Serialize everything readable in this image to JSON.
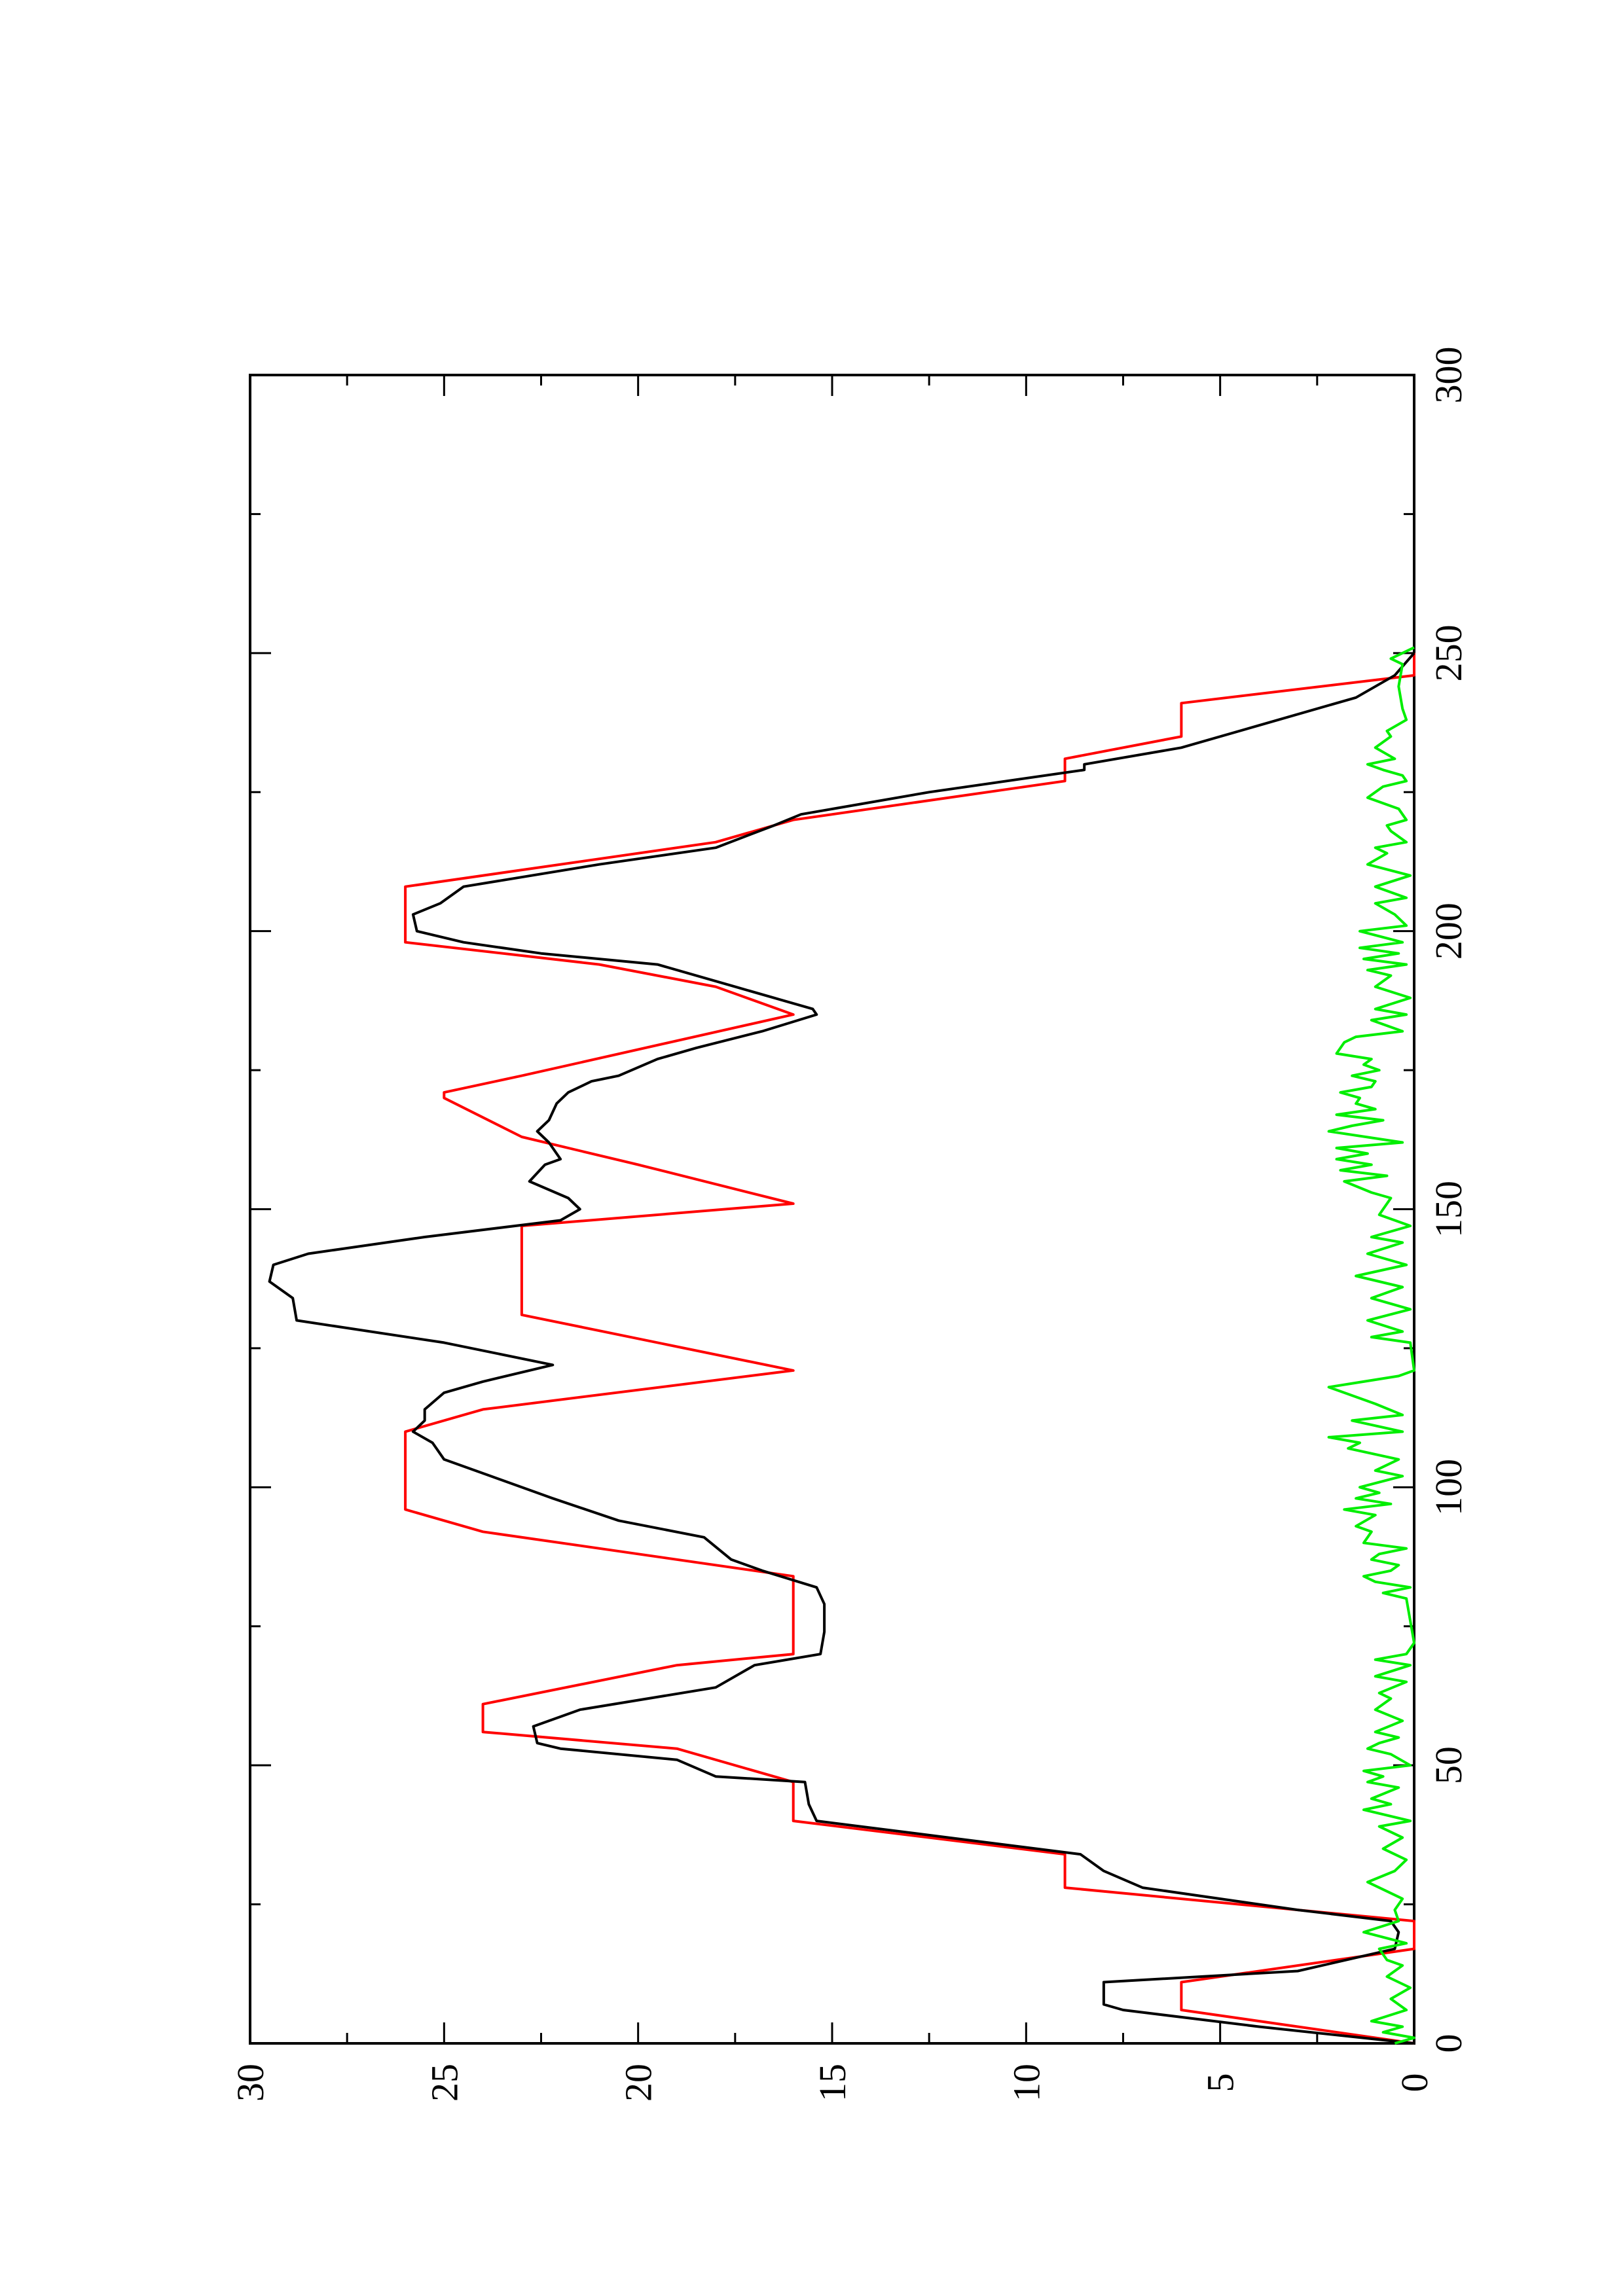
{
  "chart_data": {
    "type": "line",
    "title": "",
    "xlabel": "",
    "ylabel": "",
    "orientation": "rotated 90 degrees counter-clockwise (landscape plot printed on portrait page)",
    "xlim": [
      0,
      300
    ],
    "ylim": [
      0,
      30
    ],
    "x_ticks": [
      0,
      50,
      100,
      150,
      200,
      250,
      300
    ],
    "y_ticks": [
      0,
      5,
      10,
      15,
      20,
      25,
      30
    ],
    "x_tick_labels": [
      "0",
      "50",
      "100",
      "150",
      "200",
      "250",
      "300"
    ],
    "y_tick_labels": [
      "0",
      "5",
      "10",
      "15",
      "20",
      "25",
      "30"
    ],
    "grid": false,
    "legend": "none",
    "series": [
      {
        "color": "#ff0000",
        "points": [
          [
            0,
            0
          ],
          [
            6,
            6
          ],
          [
            11,
            6
          ],
          [
            17,
            0
          ],
          [
            22,
            0
          ],
          [
            28,
            9
          ],
          [
            34,
            9
          ],
          [
            40,
            16
          ],
          [
            47,
            16
          ],
          [
            53,
            19
          ],
          [
            56,
            24
          ],
          [
            61,
            24
          ],
          [
            68,
            19
          ],
          [
            70,
            16
          ],
          [
            84,
            16
          ],
          [
            88,
            20
          ],
          [
            92,
            24
          ],
          [
            96,
            26
          ],
          [
            110,
            26
          ],
          [
            114,
            24
          ],
          [
            121,
            16
          ],
          [
            131,
            23
          ],
          [
            147,
            23
          ],
          [
            151,
            16
          ],
          [
            158,
            20
          ],
          [
            163,
            23
          ],
          [
            170,
            25
          ],
          [
            171,
            25
          ],
          [
            174,
            23
          ],
          [
            185,
            16
          ],
          [
            190,
            18
          ],
          [
            194,
            21
          ],
          [
            198,
            26
          ],
          [
            208,
            26
          ],
          [
            216,
            18
          ],
          [
            220,
            16
          ],
          [
            227,
            9
          ],
          [
            231,
            9
          ],
          [
            235,
            6
          ],
          [
            241,
            6
          ],
          [
            246,
            0
          ],
          [
            250,
            0
          ]
        ]
      },
      {
        "color": "#000000",
        "points": [
          [
            0,
            0
          ],
          [
            3,
            4
          ],
          [
            6,
            7.5
          ],
          [
            7,
            8
          ],
          [
            11,
            8
          ],
          [
            13,
            3
          ],
          [
            17,
            0.5
          ],
          [
            20,
            0.4
          ],
          [
            22,
            0.6
          ],
          [
            24,
            3
          ],
          [
            28,
            7
          ],
          [
            31,
            8
          ],
          [
            34,
            8.6
          ],
          [
            37,
            12
          ],
          [
            40,
            15.4
          ],
          [
            43,
            15.6
          ],
          [
            47,
            15.7
          ],
          [
            48,
            18
          ],
          [
            51,
            19
          ],
          [
            53,
            22
          ],
          [
            54,
            22.6
          ],
          [
            57,
            22.7
          ],
          [
            60,
            21.5
          ],
          [
            64,
            18
          ],
          [
            68,
            17
          ],
          [
            70,
            15.3
          ],
          [
            74,
            15.2
          ],
          [
            79,
            15.2
          ],
          [
            82,
            15.4
          ],
          [
            85,
            16.8
          ],
          [
            87,
            17.6
          ],
          [
            91,
            18.3
          ],
          [
            94,
            20.5
          ],
          [
            98,
            22.2
          ],
          [
            102,
            23.8
          ],
          [
            105,
            25
          ],
          [
            108,
            25.3
          ],
          [
            110,
            25.8
          ],
          [
            112,
            25.5
          ],
          [
            114,
            25.5
          ],
          [
            117,
            25
          ],
          [
            119,
            24
          ],
          [
            122,
            22.2
          ],
          [
            126,
            25
          ],
          [
            130,
            28.8
          ],
          [
            134,
            28.9
          ],
          [
            137,
            29.5
          ],
          [
            140,
            29.4
          ],
          [
            142,
            28.5
          ],
          [
            145,
            25.5
          ],
          [
            148,
            22
          ],
          [
            150,
            21.5
          ],
          [
            152,
            21.8
          ],
          [
            155,
            22.8
          ],
          [
            158,
            22.4
          ],
          [
            159,
            22
          ],
          [
            162,
            22.3
          ],
          [
            164,
            22.6
          ],
          [
            166,
            22.3
          ],
          [
            169,
            22.1
          ],
          [
            171,
            21.8
          ],
          [
            173,
            21.2
          ],
          [
            174,
            20.5
          ],
          [
            177,
            19.5
          ],
          [
            179,
            18.5
          ],
          [
            182,
            16.8
          ],
          [
            185,
            15.4
          ],
          [
            186,
            15.5
          ],
          [
            188,
            16.5
          ],
          [
            190,
            17.5
          ],
          [
            194,
            19.5
          ],
          [
            196,
            22.5
          ],
          [
            198,
            24.5
          ],
          [
            200,
            25.7
          ],
          [
            203,
            25.8
          ],
          [
            205,
            25.1
          ],
          [
            208,
            24.5
          ],
          [
            212,
            21
          ],
          [
            215,
            18
          ],
          [
            219,
            16.5
          ],
          [
            221,
            15.8
          ],
          [
            225,
            12.5
          ],
          [
            229,
            8.5
          ],
          [
            230,
            8.5
          ],
          [
            233,
            6
          ],
          [
            237,
            4
          ],
          [
            242,
            1.5
          ],
          [
            246,
            0.5
          ],
          [
            250,
            0
          ]
        ]
      },
      {
        "color": "#00ee00",
        "points": [
          [
            0,
            0.5
          ],
          [
            1,
            0
          ],
          [
            2,
            0.8
          ],
          [
            3,
            0.3
          ],
          [
            4,
            1.1
          ],
          [
            6,
            0.2
          ],
          [
            8,
            0.6
          ],
          [
            10,
            0.1
          ],
          [
            12,
            0.7
          ],
          [
            14,
            0.3
          ],
          [
            15,
            0.7
          ],
          [
            17,
            0.9
          ],
          [
            18,
            0.2
          ],
          [
            20,
            1.3
          ],
          [
            22,
            0.4
          ],
          [
            24,
            0.5
          ],
          [
            26,
            0.3
          ],
          [
            28,
            0.9
          ],
          [
            29,
            1.2
          ],
          [
            31,
            0.5
          ],
          [
            33,
            0.2
          ],
          [
            35,
            0.8
          ],
          [
            37,
            0.3
          ],
          [
            39,
            0.9
          ],
          [
            40,
            0.1
          ],
          [
            42,
            1.3
          ],
          [
            43,
            0.6
          ],
          [
            44,
            1.1
          ],
          [
            46,
            0.4
          ],
          [
            47,
            1.2
          ],
          [
            48,
            0.8
          ],
          [
            49,
            1.3
          ],
          [
            50,
            0.1
          ],
          [
            52,
            0.6
          ],
          [
            53,
            1.2
          ],
          [
            54,
            0.9
          ],
          [
            55,
            0.4
          ],
          [
            56,
            1.0
          ],
          [
            58,
            0.3
          ],
          [
            60,
            1.0
          ],
          [
            62,
            0.6
          ],
          [
            63,
            0.9
          ],
          [
            65,
            0.2
          ],
          [
            66,
            1.0
          ],
          [
            68,
            0.1
          ],
          [
            69,
            1.0
          ],
          [
            70,
            0.2
          ],
          [
            72,
            0
          ],
          [
            80,
            0.2
          ],
          [
            81,
            0.8
          ],
          [
            82,
            0.1
          ],
          [
            83,
            1.0
          ],
          [
            84,
            1.3
          ],
          [
            85,
            0.6
          ],
          [
            86,
            0.4
          ],
          [
            87,
            1.1
          ],
          [
            88,
            0.9
          ],
          [
            89,
            0.2
          ],
          [
            90,
            1.3
          ],
          [
            92,
            1.1
          ],
          [
            93,
            1.5
          ],
          [
            95,
            1.0
          ],
          [
            96,
            1.8
          ],
          [
            97,
            0.6
          ],
          [
            98,
            1.5
          ],
          [
            99,
            0.9
          ],
          [
            100,
            1.4
          ],
          [
            102,
            0.3
          ],
          [
            103,
            1.0
          ],
          [
            105,
            0.4
          ],
          [
            107,
            1.7
          ],
          [
            108,
            1.4
          ],
          [
            109,
            2.2
          ],
          [
            110,
            0.3
          ],
          [
            112,
            1.6
          ],
          [
            113,
            0.3
          ],
          [
            115,
            1.0
          ],
          [
            117,
            1.8
          ],
          [
            118,
            2.2
          ],
          [
            119,
            1.3
          ],
          [
            120,
            0.4
          ],
          [
            121,
            0
          ],
          [
            126,
            0.1
          ],
          [
            127,
            1.1
          ],
          [
            128,
            0.3
          ],
          [
            130,
            1.2
          ],
          [
            132,
            0.1
          ],
          [
            134,
            1.1
          ],
          [
            136,
            0.3
          ],
          [
            138,
            1.5
          ],
          [
            140,
            0.2
          ],
          [
            142,
            1.2
          ],
          [
            144,
            0.3
          ],
          [
            145,
            1.1
          ],
          [
            147,
            0.1
          ],
          [
            149,
            0.9
          ],
          [
            152,
            0.6
          ],
          [
            153,
            1.1
          ],
          [
            155,
            1.8
          ],
          [
            156,
            0.7
          ],
          [
            157,
            1.9
          ],
          [
            158,
            1.1
          ],
          [
            159,
            2.0
          ],
          [
            160,
            1.2
          ],
          [
            161,
            2.0
          ],
          [
            162,
            0.3
          ],
          [
            164,
            2.2
          ],
          [
            165,
            1.6
          ],
          [
            166,
            0.8
          ],
          [
            167,
            2.0
          ],
          [
            168,
            1.0
          ],
          [
            169,
            1.5
          ],
          [
            170,
            1.4
          ],
          [
            171,
            1.9
          ],
          [
            172,
            1.1
          ],
          [
            173,
            1.0
          ],
          [
            174,
            1.6
          ],
          [
            175,
            0.9
          ],
          [
            176,
            1.3
          ],
          [
            177,
            1.1
          ],
          [
            178,
            2.0
          ],
          [
            180,
            1.8
          ],
          [
            181,
            1.5
          ],
          [
            182,
            0.3
          ],
          [
            184,
            1.1
          ],
          [
            185,
            0.2
          ],
          [
            186,
            1.0
          ],
          [
            188,
            0.1
          ],
          [
            190,
            1.0
          ],
          [
            192,
            0.6
          ],
          [
            193,
            1.2
          ],
          [
            194,
            0.2
          ],
          [
            195,
            1.3
          ],
          [
            196,
            0.4
          ],
          [
            197,
            1.4
          ],
          [
            198,
            0.3
          ],
          [
            200,
            1.4
          ],
          [
            201,
            0.2
          ],
          [
            203,
            0.5
          ],
          [
            205,
            1.0
          ],
          [
            206,
            0.2
          ],
          [
            208,
            1.0
          ],
          [
            210,
            0.1
          ],
          [
            212,
            1.2
          ],
          [
            214,
            0.7
          ],
          [
            215,
            1.0
          ],
          [
            216,
            0.2
          ],
          [
            218,
            0.6
          ],
          [
            219,
            0.7
          ],
          [
            220,
            0.2
          ],
          [
            222,
            0.4
          ],
          [
            224,
            1.2
          ],
          [
            226,
            0.8
          ],
          [
            227,
            0.2
          ],
          [
            228,
            0.3
          ],
          [
            229,
            0.8
          ],
          [
            230,
            1.2
          ],
          [
            231,
            0.5
          ],
          [
            233,
            1.0
          ],
          [
            235,
            0.6
          ],
          [
            236,
            0.7
          ],
          [
            238,
            0.2
          ],
          [
            240,
            0.3
          ],
          [
            244,
            0.4
          ],
          [
            248,
            0.3
          ],
          [
            249,
            0.6
          ],
          [
            250,
            0.3
          ],
          [
            251,
            0
          ]
        ]
      }
    ]
  }
}
